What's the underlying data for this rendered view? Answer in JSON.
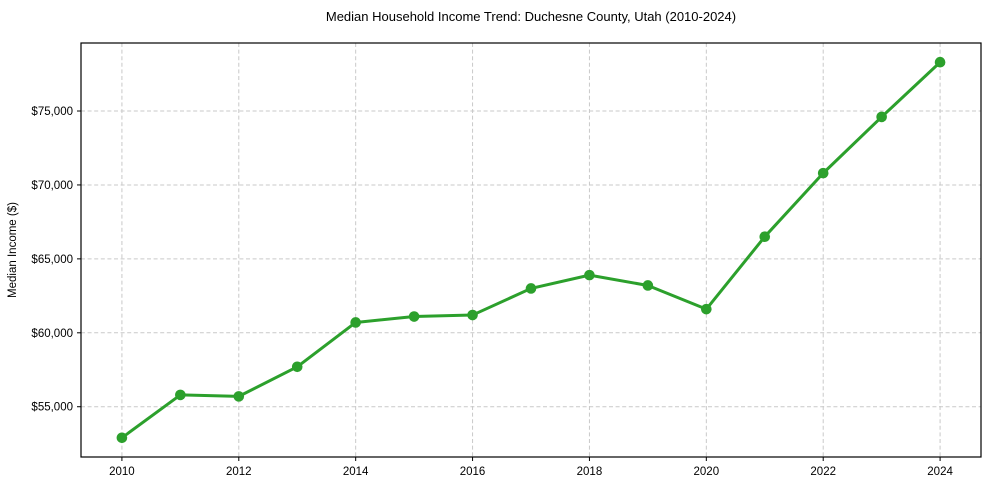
{
  "chart_data": {
    "type": "line",
    "title": "Median Household Income Trend: Duchesne County, Utah (2010-2024)",
    "xlabel": "",
    "ylabel": "Median Income ($)",
    "x": [
      2010,
      2011,
      2012,
      2013,
      2014,
      2015,
      2016,
      2017,
      2018,
      2019,
      2020,
      2021,
      2022,
      2023,
      2024
    ],
    "series": [
      {
        "name": "Median Household Income",
        "values": [
          52900,
          55800,
          55700,
          57700,
          60700,
          61100,
          61200,
          63000,
          63900,
          63200,
          61600,
          66500,
          70800,
          74600,
          78300
        ]
      }
    ],
    "xticks": [
      {
        "value": 2010,
        "label": "2010"
      },
      {
        "value": 2012,
        "label": "2012"
      },
      {
        "value": 2014,
        "label": "2014"
      },
      {
        "value": 2016,
        "label": "2016"
      },
      {
        "value": 2018,
        "label": "2018"
      },
      {
        "value": 2020,
        "label": "2020"
      },
      {
        "value": 2022,
        "label": "2022"
      },
      {
        "value": 2024,
        "label": "2024"
      }
    ],
    "yticks": [
      {
        "value": 55000,
        "label": "$55,000"
      },
      {
        "value": 60000,
        "label": "$60,000"
      },
      {
        "value": 65000,
        "label": "$65,000"
      },
      {
        "value": 70000,
        "label": "$70,000"
      },
      {
        "value": 75000,
        "label": "$75,000"
      }
    ],
    "xlim": [
      2009.3,
      2024.7
    ],
    "ylim": [
      51600,
      79600
    ],
    "grid": true,
    "grid_style": "dashed",
    "legend_position": "none",
    "marker": "circle",
    "colors": {
      "line": "#2ca02c",
      "marker": "#2ca02c",
      "grid": "#c9c9c9",
      "axis": "#000000",
      "text": "#000000",
      "background": "#ffffff"
    }
  }
}
